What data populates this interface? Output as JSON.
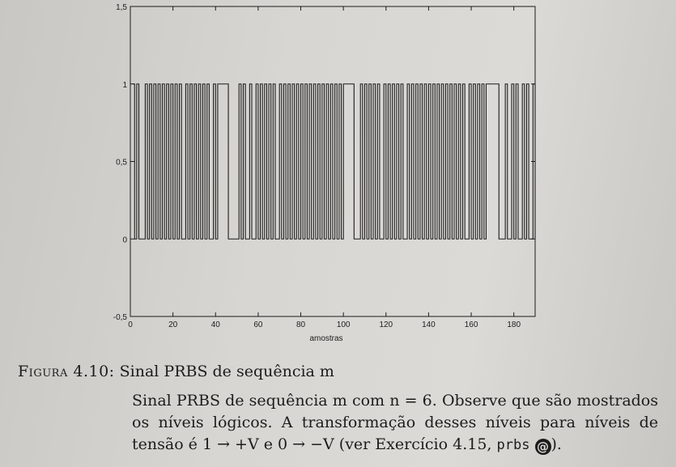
{
  "chart_data": {
    "type": "line",
    "xlabel": "amostras",
    "ylabel": "",
    "xlim": [
      0,
      190
    ],
    "ylim": [
      -0.5,
      1.5
    ],
    "x_ticks": [
      0,
      20,
      40,
      60,
      80,
      100,
      120,
      140,
      160,
      180
    ],
    "x_tick_labels": [
      "0",
      "20",
      "40",
      "60",
      "80",
      "100",
      "120",
      "140",
      "160",
      "180"
    ],
    "y_ticks": [
      -0.5,
      0,
      0.5,
      1,
      1.5
    ],
    "y_tick_labels": [
      "-0,5",
      "0",
      "0,5",
      "1",
      "1,5"
    ],
    "grid": false,
    "series": [
      {
        "style": "step",
        "values": [
          1,
          0,
          1,
          0,
          0,
          0,
          1,
          0,
          1,
          0,
          1,
          0,
          1,
          0,
          1,
          0,
          1,
          0,
          1,
          0,
          1,
          0,
          1,
          0,
          0,
          1,
          0,
          1,
          0,
          1,
          0,
          1,
          0,
          1,
          0,
          1,
          0,
          0,
          1,
          0,
          1,
          1,
          1,
          1,
          1,
          0,
          0,
          0,
          0,
          0,
          1,
          0,
          1,
          0,
          0,
          1,
          0,
          0,
          1,
          0,
          1,
          0,
          1,
          0,
          1,
          0,
          1,
          0,
          0,
          1,
          0,
          1,
          0,
          1,
          0,
          1,
          0,
          1,
          0,
          1,
          0,
          1,
          0,
          1,
          0,
          1,
          0,
          1,
          0,
          1,
          0,
          1,
          0,
          1,
          0,
          1,
          0,
          1,
          0,
          1,
          1,
          1,
          1,
          1,
          0,
          0,
          0,
          1,
          0,
          1,
          0,
          1,
          0,
          1,
          0,
          1,
          0,
          0,
          1,
          0,
          1,
          0,
          1,
          0,
          1,
          0,
          1,
          0,
          0,
          1,
          0,
          1,
          0,
          1,
          0,
          1,
          0,
          1,
          0,
          1,
          0,
          1,
          0,
          1,
          0,
          1,
          0,
          1,
          0,
          1,
          0,
          1,
          0,
          1,
          0,
          1,
          0,
          0,
          1,
          0,
          1,
          0,
          1,
          0,
          1,
          0,
          1,
          1,
          1,
          1,
          1,
          1,
          0,
          0,
          0,
          1,
          0,
          0,
          1,
          0,
          1,
          0,
          0,
          1,
          0,
          1,
          0,
          0,
          1,
          0
        ]
      }
    ]
  },
  "caption": {
    "label": "Figura 4.10:",
    "title": "Sinal PRBS de sequência m",
    "body_1": "Sinal PRBS de sequência m com n = 6. Observe que são mostrados os níveis lógicos. A transformação desses níveis para níveis de tensão é 1 → +V e 0 → −V (ver Exercício 4.15,",
    "code": "prbs",
    "icon": "at-sign-icon",
    "body_2": ")."
  }
}
